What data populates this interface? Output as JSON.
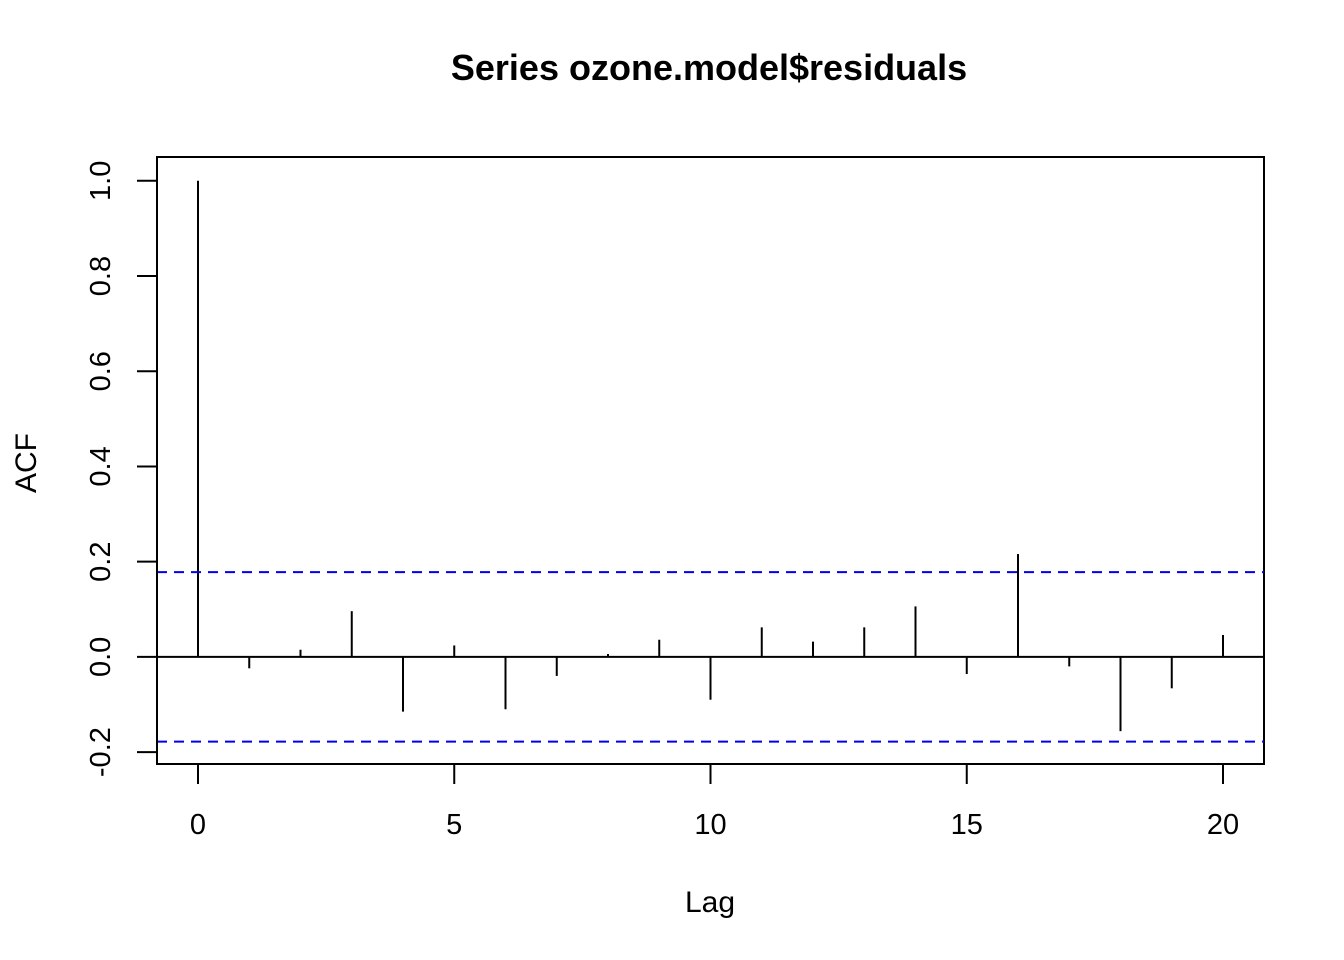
{
  "chart_data": {
    "type": "bar",
    "title": "Series  ozone.model$residuals",
    "xlabel": "Lag",
    "ylabel": "ACF",
    "x": [
      0,
      1,
      2,
      3,
      4,
      5,
      6,
      7,
      8,
      9,
      10,
      11,
      12,
      13,
      14,
      15,
      16,
      17,
      18,
      19,
      20
    ],
    "values": [
      1.0,
      -0.024,
      0.015,
      0.096,
      -0.115,
      0.024,
      -0.11,
      -0.04,
      0.006,
      0.036,
      -0.09,
      0.062,
      0.032,
      0.062,
      0.106,
      -0.036,
      0.216,
      -0.02,
      -0.156,
      -0.066,
      0.046
    ],
    "confidence_bounds": [
      0.178,
      -0.178
    ],
    "confidence_color": "#0000ee",
    "xlim": [
      -0.8,
      20.8
    ],
    "ylim": [
      -0.225,
      1.05
    ],
    "xticks": [
      0,
      5,
      10,
      15,
      20
    ],
    "xtick_labels": [
      "0",
      "5",
      "10",
      "15",
      "20"
    ],
    "yticks": [
      -0.2,
      0.0,
      0.2,
      0.4,
      0.6,
      0.8,
      1.0
    ],
    "ytick_labels": [
      "-0.2",
      "0.0",
      "0.2",
      "0.4",
      "0.6",
      "0.8",
      "1.0"
    ],
    "grid": false,
    "legend": "none"
  }
}
